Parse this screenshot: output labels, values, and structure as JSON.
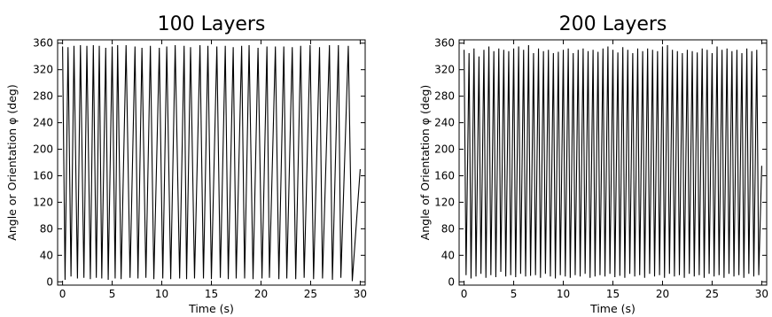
{
  "chart_data": [
    {
      "type": "line",
      "title": "100 Layers",
      "xlabel": "Time (s)",
      "ylabel": "Angle or Orientation φ (deg)",
      "xlim": [
        -0.5,
        30.5
      ],
      "ylim": [
        -5,
        365
      ],
      "xticks": [
        0,
        5,
        10,
        15,
        20,
        25,
        30
      ],
      "yticks": [
        0,
        40,
        80,
        120,
        160,
        200,
        240,
        280,
        320,
        360
      ],
      "grid": false,
      "legend": "none",
      "color": "#000000",
      "series": [
        {
          "x": [
            0.0,
            0.25,
            0.55,
            0.85,
            1.15,
            1.5,
            1.8,
            2.15,
            2.45,
            2.8,
            3.1,
            3.4,
            3.7,
            3.95,
            4.35,
            4.6,
            5.0,
            5.3,
            5.55,
            5.9,
            6.4,
            6.8,
            7.3,
            7.6,
            8.0,
            8.4,
            8.85,
            9.2,
            9.75,
            10.1,
            10.5,
            10.9,
            11.35,
            11.8,
            12.25,
            12.5,
            12.9,
            13.3,
            13.85,
            14.2,
            14.65,
            15.0,
            15.55,
            15.9,
            16.4,
            16.7,
            17.2,
            17.5,
            18.05,
            18.35,
            18.8,
            19.2,
            19.7,
            20.1,
            20.6,
            20.85,
            21.45,
            21.8,
            22.3,
            22.6,
            23.15,
            23.5,
            24.0,
            24.35,
            24.95,
            25.3,
            25.9,
            26.2,
            26.9,
            27.2,
            27.8,
            28.05,
            28.8,
            29.2,
            30.0
          ],
          "y": [
            355,
            3,
            354,
            8,
            356,
            5,
            357,
            6,
            356,
            4,
            357,
            6,
            356,
            5,
            353,
            3,
            355,
            5,
            357,
            4,
            357,
            6,
            355,
            5,
            353,
            6,
            356,
            4,
            353,
            5,
            355,
            4,
            357,
            5,
            356,
            4,
            354,
            5,
            357,
            5,
            356,
            4,
            355,
            6,
            356,
            4,
            354,
            5,
            356,
            5,
            357,
            4,
            353,
            5,
            355,
            6,
            355,
            4,
            355,
            5,
            354,
            4,
            356,
            6,
            357,
            4,
            354,
            5,
            357,
            3,
            357,
            6,
            356,
            1,
            170
          ]
        }
      ]
    },
    {
      "type": "line",
      "title": "200 Layers",
      "xlabel": "Time (s)",
      "ylabel": "Angle of Orientation φ (deg)",
      "xlim": [
        -0.5,
        30.5
      ],
      "ylim": [
        -5,
        365
      ],
      "xticks": [
        0,
        5,
        10,
        15,
        20,
        25,
        30
      ],
      "yticks": [
        0,
        40,
        80,
        120,
        160,
        200,
        240,
        280,
        320,
        360
      ],
      "grid": false,
      "legend": "none",
      "color": "#000000",
      "series": [
        {
          "x": [
            0.0,
            0.2,
            0.5,
            0.7,
            1.0,
            1.2,
            1.5,
            1.7,
            2.0,
            2.2,
            2.5,
            2.7,
            3.0,
            3.2,
            3.5,
            3.7,
            4.0,
            4.2,
            4.5,
            4.7,
            5.0,
            5.2,
            5.5,
            5.7,
            6.0,
            6.2,
            6.5,
            6.7,
            7.0,
            7.2,
            7.5,
            7.7,
            8.0,
            8.2,
            8.5,
            8.7,
            9.0,
            9.2,
            9.5,
            9.7,
            10.0,
            10.2,
            10.5,
            10.7,
            11.0,
            11.2,
            11.5,
            11.7,
            12.0,
            12.2,
            12.5,
            12.7,
            13.0,
            13.2,
            13.5,
            13.7,
            14.0,
            14.2,
            14.5,
            14.7,
            15.0,
            15.2,
            15.5,
            15.7,
            16.0,
            16.2,
            16.5,
            16.7,
            17.0,
            17.2,
            17.5,
            17.7,
            18.0,
            18.2,
            18.5,
            18.7,
            19.0,
            19.2,
            19.5,
            19.7,
            20.0,
            20.2,
            20.5,
            20.7,
            21.0,
            21.2,
            21.5,
            21.7,
            22.0,
            22.2,
            22.5,
            22.7,
            23.0,
            23.2,
            23.5,
            23.7,
            24.0,
            24.2,
            24.5,
            24.7,
            25.0,
            25.2,
            25.5,
            25.7,
            26.0,
            26.2,
            26.5,
            26.7,
            27.0,
            27.2,
            27.5,
            27.7,
            28.0,
            28.2,
            28.5,
            28.7,
            29.0,
            29.2,
            29.5,
            29.7,
            30.0
          ],
          "y": [
            350,
            10,
            345,
            5,
            352,
            8,
            340,
            12,
            350,
            6,
            355,
            10,
            348,
            7,
            352,
            15,
            350,
            8,
            348,
            10,
            352,
            7,
            355,
            12,
            350,
            8,
            357,
            9,
            345,
            10,
            352,
            6,
            348,
            12,
            350,
            8,
            345,
            5,
            347,
            10,
            350,
            8,
            352,
            6,
            345,
            10,
            350,
            8,
            352,
            12,
            348,
            6,
            350,
            8,
            347,
            10,
            352,
            8,
            355,
            12,
            350,
            7,
            346,
            9,
            354,
            6,
            350,
            12,
            345,
            8,
            352,
            10,
            348,
            6,
            352,
            12,
            350,
            8,
            348,
            10,
            355,
            6,
            357,
            12,
            350,
            8,
            348,
            10,
            345,
            6,
            350,
            12,
            348,
            8,
            346,
            10,
            352,
            6,
            350,
            12,
            345,
            8,
            355,
            10,
            350,
            6,
            352,
            12,
            348,
            8,
            350,
            10,
            345,
            6,
            352,
            12,
            348,
            8,
            350,
            10,
            175
          ]
        }
      ]
    }
  ]
}
